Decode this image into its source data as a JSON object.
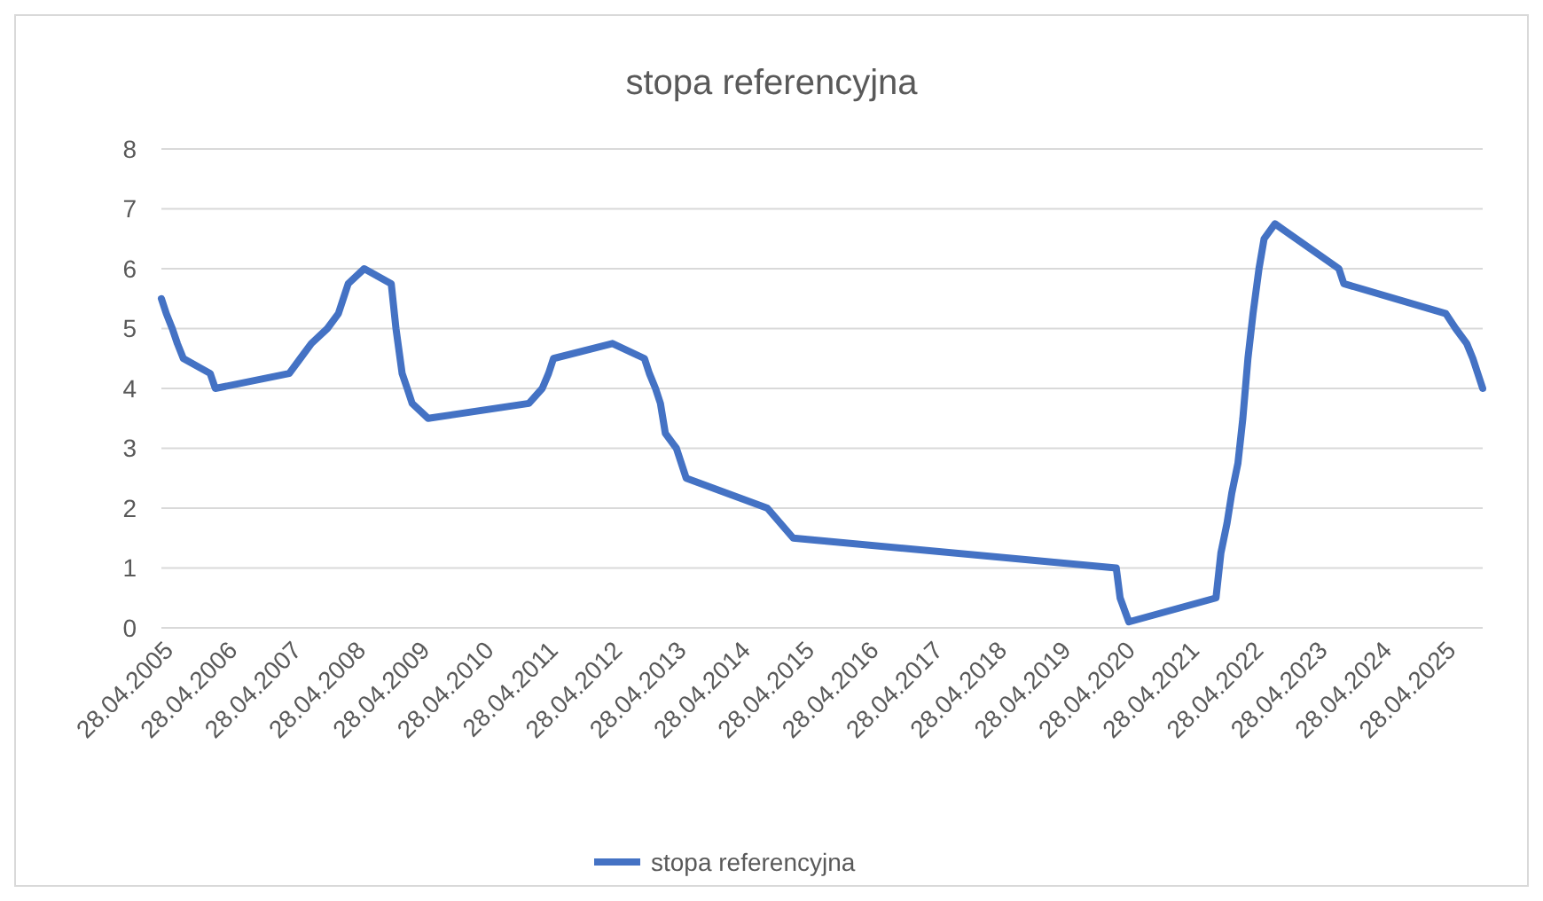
{
  "chart_data": {
    "type": "line",
    "title": "stopa referencyjna",
    "x": [
      "2005-04-28",
      "2005-05-26",
      "2005-06-29",
      "2005-07-28",
      "2005-08-31",
      "2006-01-31",
      "2006-03-01",
      "2007-04-26",
      "2007-06-28",
      "2007-08-30",
      "2007-11-29",
      "2008-01-31",
      "2008-02-28",
      "2008-03-27",
      "2008-06-26",
      "2008-11-27",
      "2008-12-24",
      "2009-01-28",
      "2009-02-26",
      "2009-03-26",
      "2009-06-25",
      "2011-01-20",
      "2011-04-06",
      "2011-05-12",
      "2011-06-09",
      "2012-05-10",
      "2012-11-08",
      "2012-12-06",
      "2013-01-10",
      "2013-02-07",
      "2013-03-07",
      "2013-05-09",
      "2013-07-04",
      "2014-10-09",
      "2015-03-05",
      "2020-03-18",
      "2020-04-09",
      "2020-05-29",
      "2021-10-07",
      "2021-11-04",
      "2021-12-09",
      "2022-01-05",
      "2022-02-09",
      "2022-03-09",
      "2022-04-07",
      "2022-05-06",
      "2022-06-09",
      "2022-07-08",
      "2022-09-08",
      "2023-09-07",
      "2023-10-05",
      "2025-05-08",
      "2025-07-03",
      "2025-09-04",
      "2025-10-09",
      "2025-11-06",
      "2025-12-04"
    ],
    "series": [
      {
        "name": "stopa referencyjna",
        "color": "#4472c4",
        "values": [
          5.5,
          5.25,
          5,
          4.75,
          4.5,
          4.25,
          4,
          4.25,
          4.5,
          4.75,
          5,
          5.25,
          5.5,
          5.75,
          6,
          5.75,
          5,
          4.25,
          4,
          3.75,
          3.5,
          3.75,
          4,
          4.25,
          4.5,
          4.75,
          4.5,
          4.25,
          4,
          3.75,
          3.25,
          3,
          2.5,
          2,
          1.5,
          1,
          0.5,
          0.1,
          0.5,
          1.25,
          1.75,
          2.25,
          2.75,
          3.5,
          4.5,
          5.25,
          6,
          6.5,
          6.75,
          6,
          5.75,
          5.25,
          5,
          4.75,
          4.5,
          4.25,
          4
        ]
      }
    ],
    "xlim": [
      "2005-04-28",
      "2025-12-04"
    ],
    "xticks": [
      {
        "value": "2005-04-28",
        "label": "28.04.2005"
      },
      {
        "value": "2006-04-28",
        "label": "28.04.2006"
      },
      {
        "value": "2007-04-28",
        "label": "28.04.2007"
      },
      {
        "value": "2008-04-28",
        "label": "28.04.2008"
      },
      {
        "value": "2009-04-28",
        "label": "28.04.2009"
      },
      {
        "value": "2010-04-28",
        "label": "28.04.2010"
      },
      {
        "value": "2011-04-28",
        "label": "28.04.2011"
      },
      {
        "value": "2012-04-28",
        "label": "28.04.2012"
      },
      {
        "value": "2013-04-28",
        "label": "28.04.2013"
      },
      {
        "value": "2014-04-28",
        "label": "28.04.2014"
      },
      {
        "value": "2015-04-28",
        "label": "28.04.2015"
      },
      {
        "value": "2016-04-28",
        "label": "28.04.2016"
      },
      {
        "value": "2017-04-28",
        "label": "28.04.2017"
      },
      {
        "value": "2018-04-28",
        "label": "28.04.2018"
      },
      {
        "value": "2019-04-28",
        "label": "28.04.2019"
      },
      {
        "value": "2020-04-28",
        "label": "28.04.2020"
      },
      {
        "value": "2021-04-28",
        "label": "28.04.2021"
      },
      {
        "value": "2022-04-28",
        "label": "28.04.2022"
      },
      {
        "value": "2023-04-28",
        "label": "28.04.2023"
      },
      {
        "value": "2024-04-28",
        "label": "28.04.2024"
      },
      {
        "value": "2025-04-28",
        "label": "28.04.2025"
      }
    ],
    "ylim": [
      0,
      8
    ],
    "yticks": [
      0,
      1,
      2,
      3,
      4,
      5,
      6,
      7,
      8
    ],
    "grid": "y",
    "legend": "bottom",
    "marker": "none",
    "line_style": "solid"
  }
}
